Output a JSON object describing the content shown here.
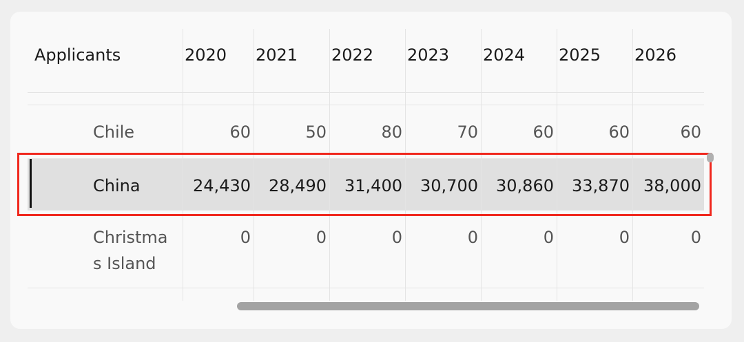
{
  "table": {
    "header": [
      "Applicants",
      "2020",
      "2021",
      "2022",
      "2023",
      "2024",
      "2025",
      "2026"
    ],
    "rows": [
      [
        "Chile",
        "60",
        "50",
        "80",
        "70",
        "60",
        "60",
        "60"
      ],
      [
        "China",
        "24,430",
        "28,490",
        "31,400",
        "30,700",
        "30,860",
        "33,870",
        "38,000"
      ],
      [
        "Christmas Island",
        "0",
        "0",
        "0",
        "0",
        "0",
        "0",
        "0"
      ]
    ],
    "selected_row": 1
  }
}
